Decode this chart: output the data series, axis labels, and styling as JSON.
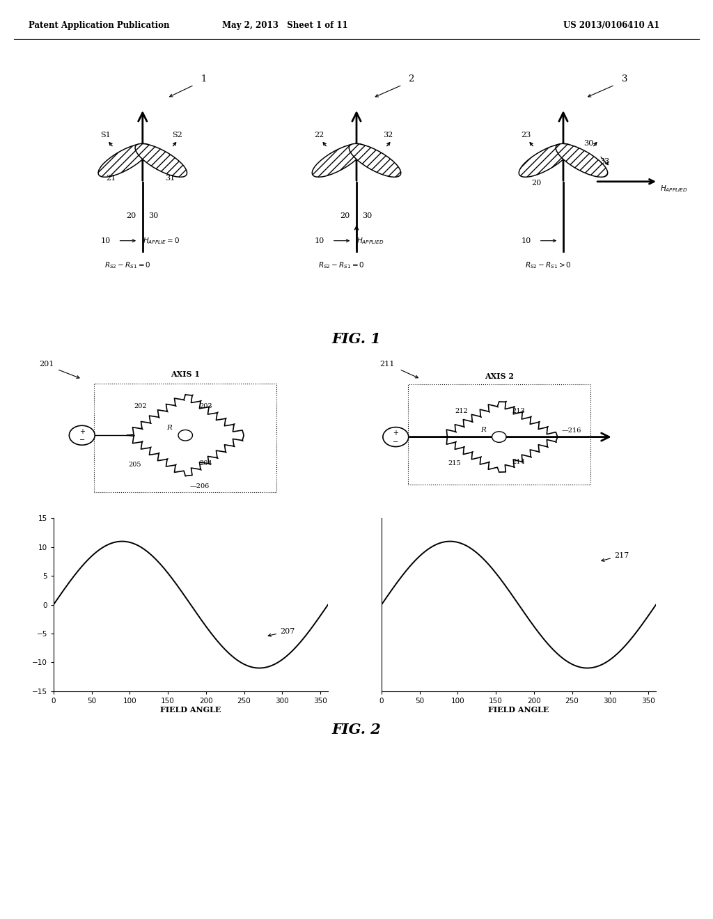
{
  "header_left": "Patent Application Publication",
  "header_center": "May 2, 2013   Sheet 1 of 11",
  "header_right": "US 2013/0106410 A1",
  "fig1_label": "FIG. 1",
  "fig2_label": "FIG. 2",
  "plot1_xlabel": "FIELD ANGLE",
  "plot2_xlabel": "FIELD ANGLE",
  "plot_ylim": [
    -15,
    15
  ],
  "plot_yticks": [
    -15,
    -10,
    -5,
    0,
    5,
    10,
    15
  ],
  "plot_xticks": [
    0,
    50,
    100,
    150,
    200,
    250,
    300,
    350
  ],
  "bg_color": "#ffffff"
}
